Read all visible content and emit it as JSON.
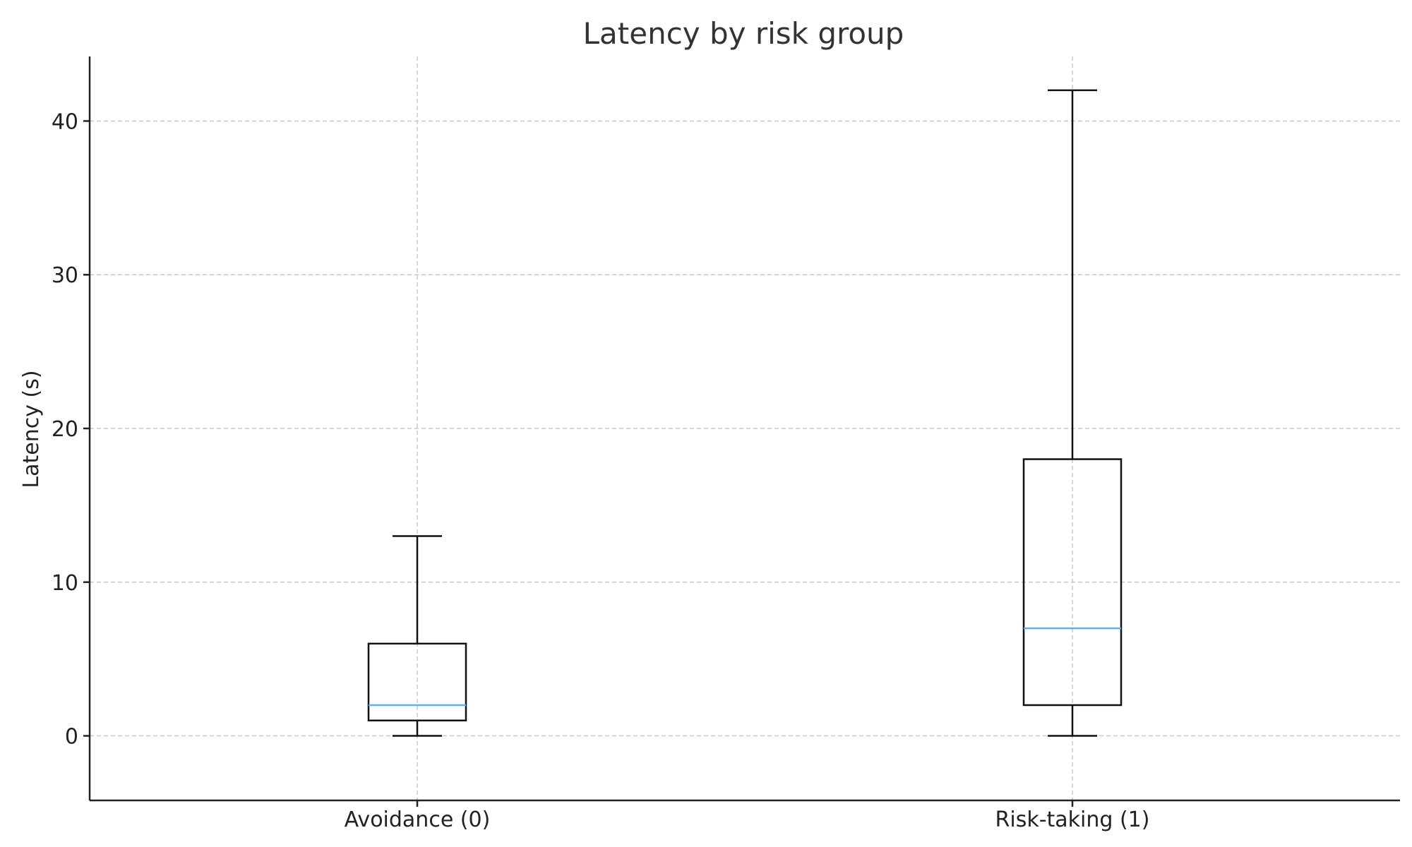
{
  "chart_data": {
    "type": "box",
    "title": "Latency by risk group",
    "xlabel": "",
    "ylabel": "Latency (s)",
    "ylim": [
      -4.2,
      44.2
    ],
    "yticks": [
      0,
      10,
      20,
      30,
      40
    ],
    "grid": true,
    "categories": [
      "Avoidance (0)",
      "Risk-taking (1)"
    ],
    "series": [
      {
        "category": "Avoidance (0)",
        "whisker_low": 0,
        "q1": 1,
        "median": 2,
        "q3": 6,
        "whisker_high": 13
      },
      {
        "category": "Risk-taking (1)",
        "whisker_low": 0,
        "q1": 2,
        "median": 7,
        "q3": 18,
        "whisker_high": 42
      }
    ],
    "colors": {
      "box": "#111111",
      "median": "#56b4e9",
      "grid": "#c8c8c8"
    }
  }
}
